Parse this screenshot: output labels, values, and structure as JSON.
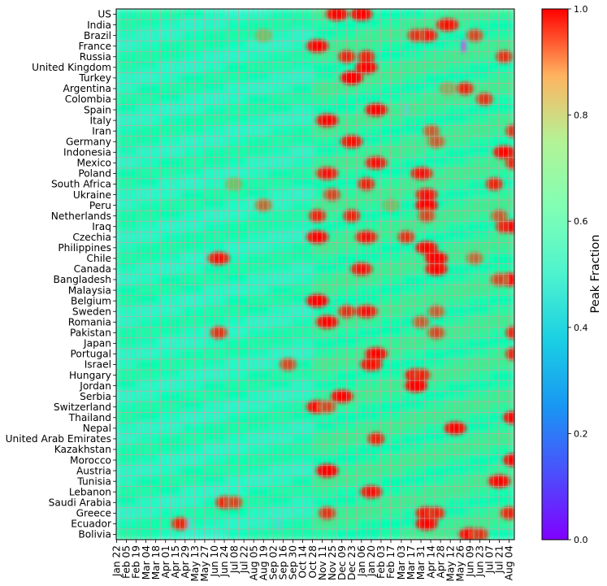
{
  "chart_data": {
    "type": "heatmap",
    "title": "",
    "xlabel": "",
    "ylabel": "",
    "countries": [
      "US",
      "India",
      "Brazil",
      "France",
      "Russia",
      "United Kingdom",
      "Turkey",
      "Argentina",
      "Colombia",
      "Spain",
      "Italy",
      "Iran",
      "Germany",
      "Indonesia",
      "Mexico",
      "Poland",
      "South Africa",
      "Ukraine",
      "Peru",
      "Netherlands",
      "Iraq",
      "Czechia",
      "Philippines",
      "Chile",
      "Canada",
      "Bangladesh",
      "Malaysia",
      "Belgium",
      "Sweden",
      "Romania",
      "Pakistan",
      "Japan",
      "Portugal",
      "Israel",
      "Hungary",
      "Jordan",
      "Serbia",
      "Switzerland",
      "Thailand",
      "Nepal",
      "United Arab Emirates",
      "Kazakhstan",
      "Morocco",
      "Austria",
      "Tunisia",
      "Lebanon",
      "Saudi Arabia",
      "Greece",
      "Ecuador",
      "Bolivia"
    ],
    "x_ticks": [
      "Jan 22",
      "Feb 05",
      "Feb 19",
      "Mar 04",
      "Mar 18",
      "Apr 01",
      "Apr 15",
      "Apr 29",
      "May 13",
      "May 27",
      "Jun 10",
      "Jun 24",
      "Jul 08",
      "Jul 22",
      "Aug 05",
      "Aug 19",
      "Sep 02",
      "Sep 16",
      "Sep 30",
      "Oct 14",
      "Oct 28",
      "Nov 11",
      "Nov 25",
      "Dec 09",
      "Dec 23",
      "Jan 06",
      "Jan 20",
      "Feb 03",
      "Feb 17",
      "Mar 03",
      "Mar 17",
      "Mar 31",
      "Apr 14",
      "Apr 28",
      "May 12",
      "May 26",
      "Jun 09",
      "Jun 23",
      "Jul 07",
      "Jul 21",
      "Aug 04"
    ],
    "x_range": [
      "Jan 22",
      "Aug 11"
    ],
    "colorbar": {
      "label": "Peak Fraction",
      "range": [
        0,
        1
      ],
      "ticks": [
        "0.0",
        "0.2",
        "0.4",
        "0.6",
        "0.8",
        "1.0"
      ],
      "colormap": "rainbow"
    },
    "baseline_value": 0.5,
    "grid": true,
    "grid_color": "#d6a0a0",
    "peaks": [
      [
        "US",
        "Dec 02",
        0.95
      ],
      [
        "US",
        "Jan 06",
        0.95
      ],
      [
        "India",
        "May 08",
        0.93
      ],
      [
        "Brazil",
        "Apr 08",
        0.92
      ],
      [
        "Brazil",
        "Mar 24",
        0.88
      ],
      [
        "Brazil",
        "Jun 16",
        0.85
      ],
      [
        "Brazil",
        "Aug 19",
        0.72
      ],
      [
        "France",
        "Nov 04",
        0.95
      ],
      [
        "France",
        "May 31",
        0.05
      ],
      [
        "Russia",
        "Dec 16",
        0.9
      ],
      [
        "Russia",
        "Jan 13",
        0.9
      ],
      [
        "Russia",
        "Jul 28",
        0.88
      ],
      [
        "United Kingdom",
        "Jan 13",
        0.95
      ],
      [
        "Turkey",
        "Dec 23",
        0.98
      ],
      [
        "Argentina",
        "Jun 02",
        0.9
      ],
      [
        "Argentina",
        "May 08",
        0.75
      ],
      [
        "Colombia",
        "Jun 30",
        0.88
      ],
      [
        "Spain",
        "Jan 27",
        0.95
      ],
      [
        "Spain",
        "Mar 10",
        0.3
      ],
      [
        "Italy",
        "Nov 18",
        0.95
      ],
      [
        "Iran",
        "Apr 15",
        0.82
      ],
      [
        "Iran",
        "Aug 11",
        0.88
      ],
      [
        "Germany",
        "Dec 23",
        0.93
      ],
      [
        "Germany",
        "Apr 22",
        0.82
      ],
      [
        "Indonesia",
        "Jul 28",
        0.95
      ],
      [
        "Mexico",
        "Jan 27",
        0.92
      ],
      [
        "Mexico",
        "Aug 11",
        0.9
      ],
      [
        "Poland",
        "Nov 18",
        0.92
      ],
      [
        "Poland",
        "Apr 01",
        0.92
      ],
      [
        "South Africa",
        "Jan 13",
        0.9
      ],
      [
        "South Africa",
        "Jul 14",
        0.9
      ],
      [
        "South Africa",
        "Jul 08",
        0.72
      ],
      [
        "Ukraine",
        "Nov 25",
        0.85
      ],
      [
        "Ukraine",
        "Apr 08",
        0.92
      ],
      [
        "Peru",
        "Apr 08",
        0.97
      ],
      [
        "Peru",
        "Aug 19",
        0.8
      ],
      [
        "Peru",
        "Feb 17",
        0.72
      ],
      [
        "Netherlands",
        "Nov 04",
        0.9
      ],
      [
        "Netherlands",
        "Dec 23",
        0.9
      ],
      [
        "Netherlands",
        "Apr 08",
        0.85
      ],
      [
        "Netherlands",
        "Jul 21",
        0.82
      ],
      [
        "Iraq",
        "Jul 28",
        0.9
      ],
      [
        "Iraq",
        "Aug 11",
        0.95
      ],
      [
        "Czechia",
        "Nov 04",
        0.95
      ],
      [
        "Czechia",
        "Jan 13",
        0.92
      ],
      [
        "Czechia",
        "Mar 10",
        0.88
      ],
      [
        "Philippines",
        "Apr 08",
        0.95
      ],
      [
        "Chile",
        "Jun 16",
        0.92
      ],
      [
        "Chile",
        "Jun 16",
        0.8
      ],
      [
        "Chile",
        "Apr 22",
        0.97
      ],
      [
        "Canada",
        "Jan 06",
        0.92
      ],
      [
        "Canada",
        "Apr 22",
        0.95
      ],
      [
        "Bangladesh",
        "Aug 04",
        0.95
      ],
      [
        "Bangladesh",
        "Jul 21",
        0.85
      ],
      [
        "Belgium",
        "Nov 04",
        0.97
      ],
      [
        "Sweden",
        "Dec 16",
        0.88
      ],
      [
        "Sweden",
        "Jan 13",
        0.92
      ],
      [
        "Sweden",
        "Apr 22",
        0.82
      ],
      [
        "Romania",
        "Nov 18",
        0.95
      ],
      [
        "Romania",
        "Mar 31",
        0.82
      ],
      [
        "Pakistan",
        "Jun 16",
        0.88
      ],
      [
        "Pakistan",
        "Apr 22",
        0.85
      ],
      [
        "Pakistan",
        "Aug 11",
        0.9
      ],
      [
        "Portugal",
        "Jan 27",
        0.95
      ],
      [
        "Portugal",
        "Aug 11",
        0.9
      ],
      [
        "Israel",
        "Sep 23",
        0.85
      ],
      [
        "Israel",
        "Jan 20",
        0.93
      ],
      [
        "Hungary",
        "Mar 24",
        0.95
      ],
      [
        "Hungary",
        "Apr 01",
        0.9
      ],
      [
        "Jordan",
        "Mar 24",
        0.97
      ],
      [
        "Serbia",
        "Dec 09",
        0.95
      ],
      [
        "Switzerland",
        "Nov 04",
        0.95
      ],
      [
        "Switzerland",
        "Nov 18",
        0.85
      ],
      [
        "Thailand",
        "Aug 11",
        0.95
      ],
      [
        "Nepal",
        "May 19",
        0.95
      ],
      [
        "United Arab Emirates",
        "Jan 27",
        0.9
      ],
      [
        "Morocco",
        "Aug 11",
        0.95
      ],
      [
        "Austria",
        "Nov 18",
        0.97
      ],
      [
        "Tunisia",
        "Jul 21",
        0.95
      ],
      [
        "Lebanon",
        "Jan 20",
        0.92
      ],
      [
        "Saudi Arabia",
        "Jun 24",
        0.9
      ],
      [
        "Saudi Arabia",
        "Jul 08",
        0.85
      ],
      [
        "Greece",
        "Nov 18",
        0.88
      ],
      [
        "Greece",
        "Apr 08",
        0.93
      ],
      [
        "Greece",
        "Apr 22",
        0.9
      ],
      [
        "Greece",
        "Aug 04",
        0.9
      ],
      [
        "Ecuador",
        "Apr 22",
        0.9
      ],
      [
        "Ecuador",
        "May 05",
        0.3
      ],
      [
        "Ecuador",
        "Apr 08",
        0.95
      ],
      [
        "Ecuador",
        "Sep 09",
        0.3
      ],
      [
        "Bolivia",
        "Jun 09",
        0.95
      ],
      [
        "Bolivia",
        "Jun 23",
        0.88
      ]
    ]
  }
}
